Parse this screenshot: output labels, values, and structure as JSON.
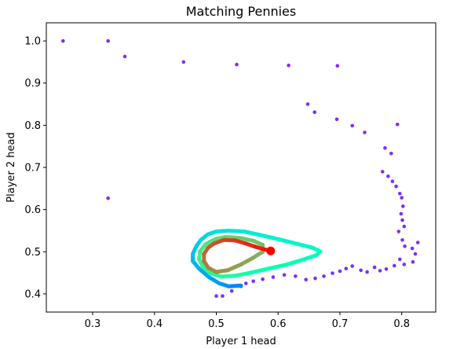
{
  "chart_data": {
    "type": "scatter",
    "title": "Matching Pennies",
    "xlabel": "Player 1 head",
    "ylabel": "Player 2 head",
    "xlim": [
      0.225,
      0.855
    ],
    "ylim": [
      0.357,
      1.043
    ],
    "xticks": [
      "0.3",
      "0.4",
      "0.5",
      "0.6",
      "0.7",
      "0.8"
    ],
    "yticks": [
      "0.4",
      "0.5",
      "0.6",
      "0.7",
      "0.8",
      "0.9",
      "1.0"
    ],
    "grid": false,
    "legend": "none",
    "colormap": "rainbow",
    "scatter_color": "#7b2ff7",
    "final_point": {
      "x": 0.588,
      "y": 0.502,
      "color": "#ff0000"
    },
    "series": [
      {
        "values": [
          {
            "x": 0.252,
            "y": 1.0
          },
          {
            "x": 0.325,
            "y": 1.0
          },
          {
            "x": 0.352,
            "y": 0.963
          },
          {
            "x": 0.447,
            "y": 0.95
          },
          {
            "x": 0.533,
            "y": 0.944
          },
          {
            "x": 0.617,
            "y": 0.942
          },
          {
            "x": 0.696,
            "y": 0.941
          },
          {
            "x": 0.648,
            "y": 0.85
          },
          {
            "x": 0.659,
            "y": 0.831
          },
          {
            "x": 0.695,
            "y": 0.814
          },
          {
            "x": 0.72,
            "y": 0.799
          },
          {
            "x": 0.74,
            "y": 0.783
          },
          {
            "x": 0.793,
            "y": 0.802
          },
          {
            "x": 0.773,
            "y": 0.746
          },
          {
            "x": 0.783,
            "y": 0.733
          },
          {
            "x": 0.769,
            "y": 0.69
          },
          {
            "x": 0.778,
            "y": 0.679
          },
          {
            "x": 0.785,
            "y": 0.667
          },
          {
            "x": 0.791,
            "y": 0.655
          },
          {
            "x": 0.797,
            "y": 0.638
          },
          {
            "x": 0.8,
            "y": 0.628
          },
          {
            "x": 0.802,
            "y": 0.608
          },
          {
            "x": 0.799,
            "y": 0.59
          },
          {
            "x": 0.801,
            "y": 0.575
          },
          {
            "x": 0.804,
            "y": 0.56
          },
          {
            "x": 0.795,
            "y": 0.548
          },
          {
            "x": 0.801,
            "y": 0.528
          },
          {
            "x": 0.805,
            "y": 0.513
          },
          {
            "x": 0.817,
            "y": 0.508
          },
          {
            "x": 0.826,
            "y": 0.522
          },
          {
            "x": 0.822,
            "y": 0.495
          },
          {
            "x": 0.818,
            "y": 0.476
          },
          {
            "x": 0.804,
            "y": 0.47
          },
          {
            "x": 0.797,
            "y": 0.482
          },
          {
            "x": 0.788,
            "y": 0.467
          },
          {
            "x": 0.775,
            "y": 0.459
          },
          {
            "x": 0.765,
            "y": 0.455
          },
          {
            "x": 0.756,
            "y": 0.463
          },
          {
            "x": 0.744,
            "y": 0.452
          },
          {
            "x": 0.734,
            "y": 0.456
          },
          {
            "x": 0.72,
            "y": 0.466
          },
          {
            "x": 0.71,
            "y": 0.46
          },
          {
            "x": 0.7,
            "y": 0.454
          },
          {
            "x": 0.688,
            "y": 0.449
          },
          {
            "x": 0.674,
            "y": 0.442
          },
          {
            "x": 0.66,
            "y": 0.437
          },
          {
            "x": 0.645,
            "y": 0.434
          },
          {
            "x": 0.628,
            "y": 0.442
          },
          {
            "x": 0.61,
            "y": 0.445
          },
          {
            "x": 0.592,
            "y": 0.44
          },
          {
            "x": 0.575,
            "y": 0.435
          },
          {
            "x": 0.56,
            "y": 0.43
          },
          {
            "x": 0.548,
            "y": 0.425
          },
          {
            "x": 0.54,
            "y": 0.418
          },
          {
            "x": 0.525,
            "y": 0.407
          },
          {
            "x": 0.51,
            "y": 0.395
          },
          {
            "x": 0.5,
            "y": 0.395
          },
          {
            "x": 0.325,
            "y": 0.627
          }
        ]
      },
      {
        "name": "",
        "values": [
          {
            "x": 0.54,
            "y": 0.42
          },
          {
            "x": 0.52,
            "y": 0.418
          },
          {
            "x": 0.505,
            "y": 0.425
          },
          {
            "x": 0.488,
            "y": 0.44
          },
          {
            "x": 0.472,
            "y": 0.46
          },
          {
            "x": 0.462,
            "y": 0.478
          },
          {
            "x": 0.462,
            "y": 0.495
          },
          {
            "x": 0.468,
            "y": 0.514
          },
          {
            "x": 0.475,
            "y": 0.528
          },
          {
            "x": 0.486,
            "y": 0.541
          },
          {
            "x": 0.5,
            "y": 0.548
          },
          {
            "x": 0.52,
            "y": 0.55
          },
          {
            "x": 0.545,
            "y": 0.548
          },
          {
            "x": 0.57,
            "y": 0.54
          },
          {
            "x": 0.6,
            "y": 0.53
          },
          {
            "x": 0.63,
            "y": 0.519
          },
          {
            "x": 0.655,
            "y": 0.51
          },
          {
            "x": 0.668,
            "y": 0.501
          },
          {
            "x": 0.662,
            "y": 0.492
          },
          {
            "x": 0.642,
            "y": 0.482
          },
          {
            "x": 0.615,
            "y": 0.47
          },
          {
            "x": 0.585,
            "y": 0.46
          },
          {
            "x": 0.555,
            "y": 0.45
          },
          {
            "x": 0.53,
            "y": 0.443
          },
          {
            "x": 0.508,
            "y": 0.441
          },
          {
            "x": 0.49,
            "y": 0.449
          },
          {
            "x": 0.478,
            "y": 0.465
          },
          {
            "x": 0.472,
            "y": 0.483
          },
          {
            "x": 0.474,
            "y": 0.502
          },
          {
            "x": 0.483,
            "y": 0.518
          },
          {
            "x": 0.498,
            "y": 0.53
          },
          {
            "x": 0.515,
            "y": 0.535
          },
          {
            "x": 0.538,
            "y": 0.533
          },
          {
            "x": 0.56,
            "y": 0.526
          },
          {
            "x": 0.575,
            "y": 0.516
          },
          {
            "x": 0.575,
            "y": 0.5
          },
          {
            "x": 0.56,
            "y": 0.486
          },
          {
            "x": 0.54,
            "y": 0.47
          },
          {
            "x": 0.518,
            "y": 0.456
          },
          {
            "x": 0.5,
            "y": 0.452
          },
          {
            "x": 0.487,
            "y": 0.462
          },
          {
            "x": 0.48,
            "y": 0.478
          },
          {
            "x": 0.48,
            "y": 0.495
          },
          {
            "x": 0.487,
            "y": 0.51
          },
          {
            "x": 0.497,
            "y": 0.52
          },
          {
            "x": 0.512,
            "y": 0.528
          },
          {
            "x": 0.53,
            "y": 0.527
          },
          {
            "x": 0.547,
            "y": 0.52
          },
          {
            "x": 0.563,
            "y": 0.512
          },
          {
            "x": 0.577,
            "y": 0.506
          },
          {
            "x": 0.588,
            "y": 0.502
          }
        ]
      }
    ]
  }
}
